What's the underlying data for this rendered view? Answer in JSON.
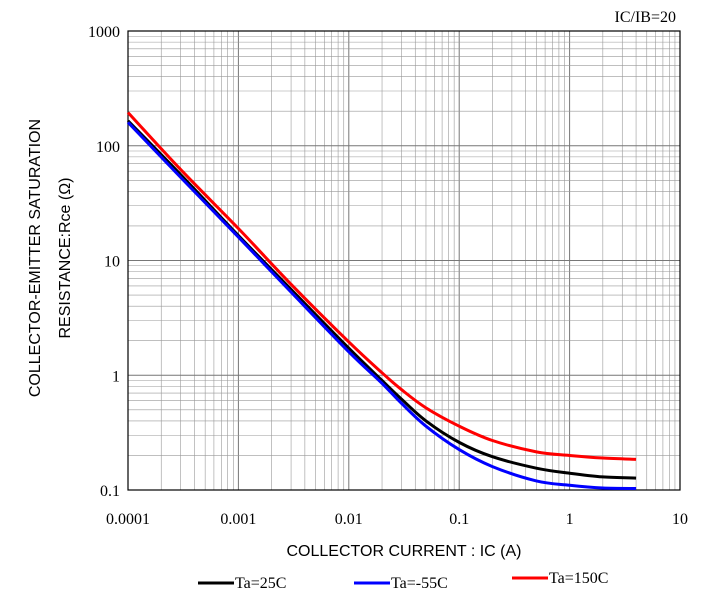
{
  "chart_data": {
    "type": "line",
    "annotation": "IC/IB=20",
    "xlabel": "COLLECTOR CURRENT : IC (A)",
    "ylabel_line1": "COLLECTOR-EMITTER SATURATION",
    "ylabel_line2": "RESISTANCE:Rce  (Ω)",
    "x_scale": "log",
    "y_scale": "log",
    "xlim": [
      0.0001,
      10
    ],
    "ylim": [
      0.1,
      1000
    ],
    "x_ticks": [
      "0.0001",
      "0.001",
      "0.01",
      "0.1",
      "1",
      "10"
    ],
    "y_ticks": [
      "0.1",
      "1",
      "10",
      "100",
      "1000"
    ],
    "grid": true,
    "legend_position": "bottom",
    "series": [
      {
        "name": "Ta=25C",
        "color": "#000000",
        "x": [
          0.0001,
          0.0003,
          0.001,
          0.003,
          0.01,
          0.02,
          0.03,
          0.05,
          0.1,
          0.2,
          0.5,
          1,
          2,
          4
        ],
        "y": [
          165,
          56,
          16.5,
          5.6,
          1.72,
          0.9,
          0.62,
          0.4,
          0.26,
          0.195,
          0.155,
          0.14,
          0.13,
          0.127
        ]
      },
      {
        "name": "Ta=-55C",
        "color": "#0000ff",
        "x": [
          0.0001,
          0.0003,
          0.001,
          0.003,
          0.01,
          0.02,
          0.03,
          0.05,
          0.1,
          0.2,
          0.5,
          1,
          2,
          4
        ],
        "y": [
          160,
          53,
          16,
          5.3,
          1.6,
          0.85,
          0.57,
          0.36,
          0.225,
          0.16,
          0.12,
          0.11,
          0.104,
          0.103
        ]
      },
      {
        "name": "Ta=150C",
        "color": "#ff0000",
        "x": [
          0.0001,
          0.0003,
          0.001,
          0.003,
          0.01,
          0.02,
          0.03,
          0.05,
          0.1,
          0.2,
          0.5,
          1,
          2,
          4
        ],
        "y": [
          195,
          62,
          19,
          6.2,
          1.95,
          1.05,
          0.75,
          0.52,
          0.36,
          0.27,
          0.215,
          0.2,
          0.19,
          0.185
        ]
      }
    ]
  }
}
